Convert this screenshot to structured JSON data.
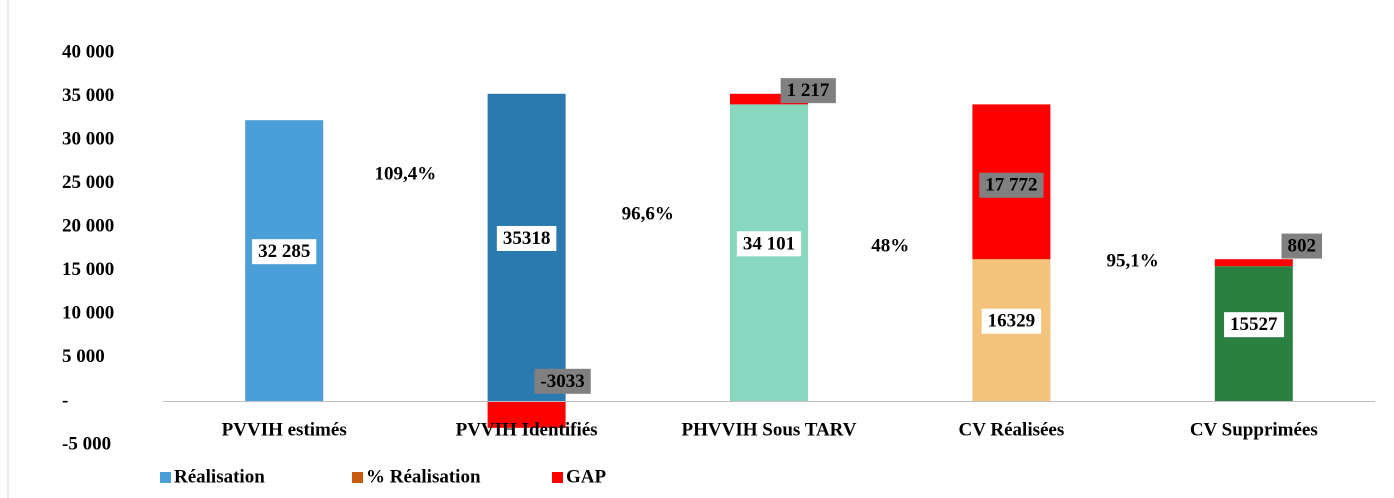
{
  "chart_data": {
    "type": "stacked-bar",
    "categories": [
      "PVVIH estimés",
      "PVVIH Identifiés",
      "PHVVIH Sous TARV",
      "CV Réalisées",
      "CV Supprimées"
    ],
    "series": [
      {
        "name": "Réalisation",
        "color": "#4a9fd8",
        "colors": [
          "#4a9fd8",
          "#2a7ab0",
          "#88d8c0",
          "#f4c47c",
          "#2a8040"
        ],
        "values": [
          32285,
          35318,
          34101,
          16329,
          15527
        ],
        "value_labels": [
          "32 285",
          "35318",
          "34 101",
          "16329",
          "15527"
        ]
      },
      {
        "name": "% Réalisation",
        "color": "#c55a11",
        "values": [
          109.4,
          96.6,
          48,
          95.1,
          null
        ],
        "value_labels": [
          "109,4%",
          "96,6%",
          "48%",
          "95,1%",
          null
        ]
      },
      {
        "name": "GAP",
        "color": "#ff0000",
        "values": [
          null,
          -3033,
          1217,
          17772,
          802
        ],
        "value_labels": [
          null,
          "-3033",
          "1 217",
          "17 772",
          "802"
        ]
      }
    ],
    "ylim": [
      -5000,
      40000
    ],
    "yticks": [
      {
        "value": -5000,
        "label": "-5 000"
      },
      {
        "value": 0,
        "label": "-"
      },
      {
        "value": 5000,
        "label": "5 000"
      },
      {
        "value": 10000,
        "label": "10 000"
      },
      {
        "value": 15000,
        "label": "15 000"
      },
      {
        "value": 20000,
        "label": "20 000"
      },
      {
        "value": 25000,
        "label": "25 000"
      },
      {
        "value": 30000,
        "label": "30 000"
      },
      {
        "value": 35000,
        "label": "35 000"
      },
      {
        "value": 40000,
        "label": "40 000"
      }
    ],
    "legend": "bottom-left"
  }
}
